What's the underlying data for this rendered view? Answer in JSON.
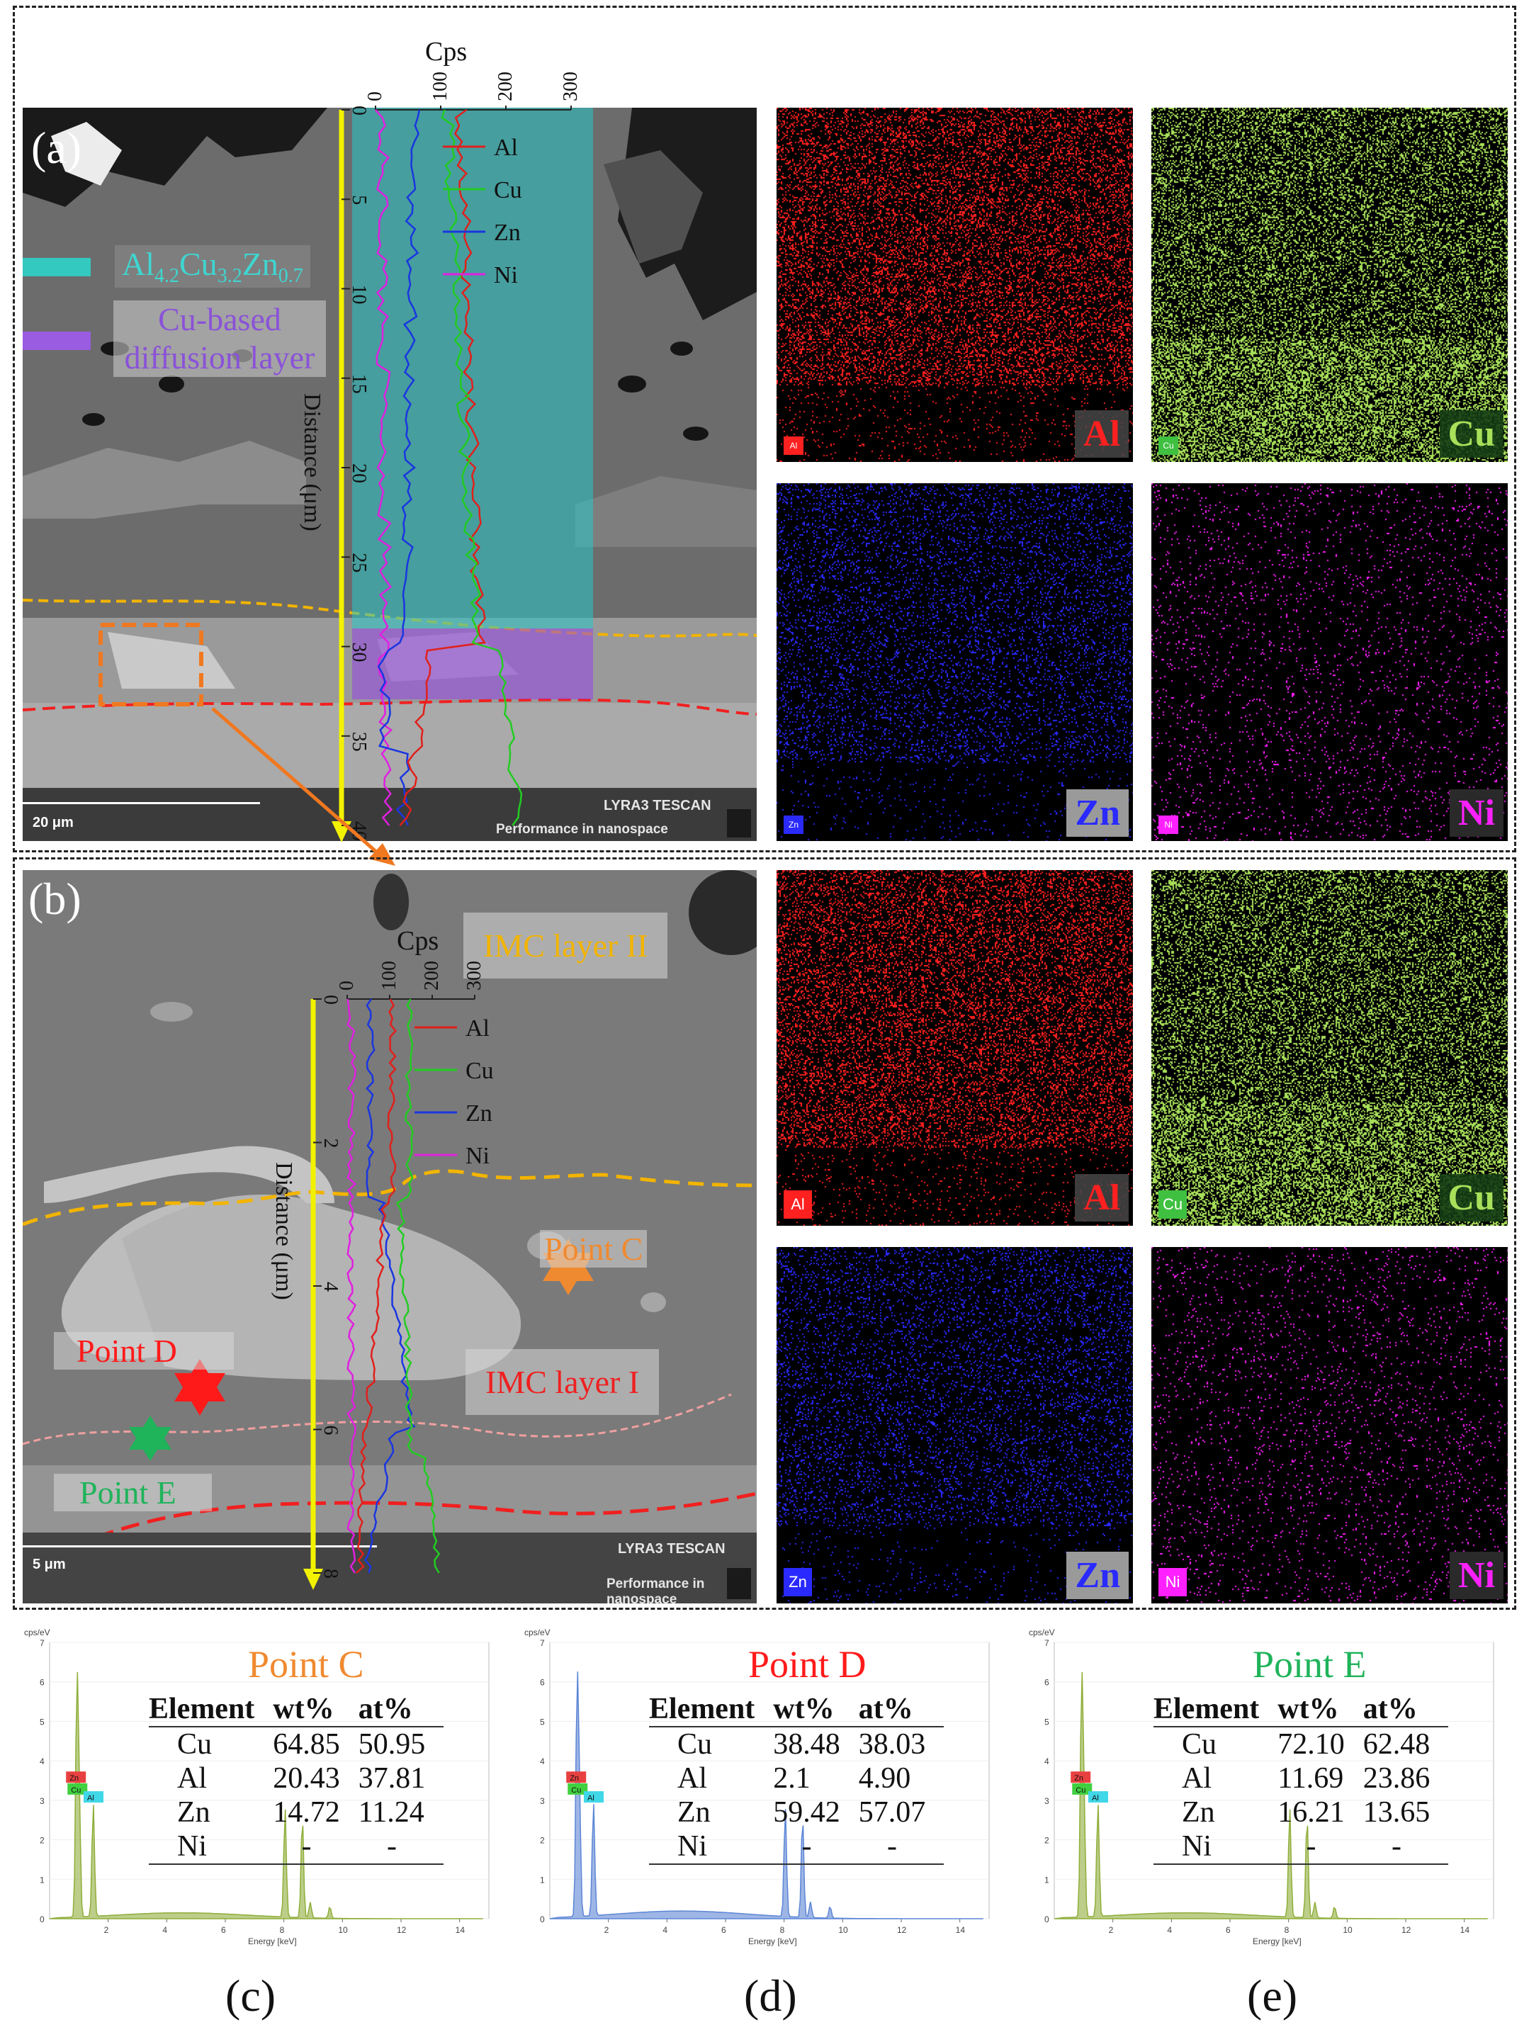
{
  "panel_a": {
    "letter": "(a)",
    "axis_top_label": "Cps",
    "axis_top_ticks": [
      "0",
      "100",
      "200",
      "300"
    ],
    "axis_side_label": "Distance (μm)",
    "axis_side_ticks": [
      "0",
      "5",
      "10",
      "15",
      "20",
      "25",
      "30",
      "35",
      "40"
    ],
    "legend": [
      "Al",
      "Cu",
      "Zn",
      "Ni"
    ],
    "annotation_phase": "Al4.2Cu3.2Zn0.7",
    "annotation_phase_parts": {
      "a": "Al",
      "s1": "4.2",
      "b": "Cu",
      "s2": "3.2",
      "c": "Zn",
      "s3": "0.7"
    },
    "annotation_diffusion": [
      "Cu-based",
      "diffusion layer"
    ],
    "scale_bar": "20 μm",
    "brand": "LYRA3 TESCAN",
    "tagline": "Performance in nanospace"
  },
  "panel_b": {
    "letter": "(b)",
    "axis_top_label": "Cps",
    "axis_top_ticks": [
      "0",
      "100",
      "200",
      "300"
    ],
    "axis_side_label": "Distance (μm)",
    "axis_side_ticks": [
      "0",
      "2",
      "4",
      "6",
      "8"
    ],
    "legend": [
      "Al",
      "Cu",
      "Zn",
      "Ni"
    ],
    "labels": {
      "imc2": "IMC layer  II",
      "imc1": "IMC layer I",
      "point_c": "Point C",
      "point_d": "Point D",
      "point_e": "Point E"
    },
    "scale_bar": "5 μm",
    "brand": "LYRA3 TESCAN",
    "tagline": "Performance in nanospace"
  },
  "maps_a": [
    {
      "element": "Al",
      "mini": "Al",
      "color": "#ff2020"
    },
    {
      "element": "Cu",
      "mini": "Cu",
      "color": "#a8e05a"
    },
    {
      "element": "Zn",
      "mini": "Zn",
      "color": "#2a2aff"
    },
    {
      "element": "Ni",
      "mini": "Ni",
      "color": "#ff20ff"
    }
  ],
  "maps_b": [
    {
      "element": "Al",
      "mini": "Al",
      "color": "#ff2020"
    },
    {
      "element": "Cu",
      "mini": "Cu",
      "color": "#a8e05a"
    },
    {
      "element": "Zn",
      "mini": "Zn",
      "color": "#2a2aff"
    },
    {
      "element": "Ni",
      "mini": "Ni",
      "color": "#ff20ff"
    }
  ],
  "spectra": [
    {
      "letter": "(c)",
      "title": "Point C",
      "title_color": "#f08a30",
      "y_unit": "cps/eV",
      "x_label": "Energy [keV]",
      "headers": [
        "Element",
        "wt%",
        "at%"
      ],
      "rows": [
        [
          "Cu",
          "64.85",
          "50.95"
        ],
        [
          "Al",
          "20.43",
          "37.81"
        ],
        [
          "Zn",
          "14.72",
          "11.24"
        ],
        [
          "Ni",
          "-",
          "-"
        ]
      ],
      "peak_tags": [
        "Zn",
        "Cu",
        "Al"
      ],
      "fill": "#8fae3a"
    },
    {
      "letter": "(d)",
      "title": "Point D",
      "title_color": "#ff1a1a",
      "y_unit": "cps/eV",
      "x_label": "Energy [keV]",
      "headers": [
        "Element",
        "wt%",
        "at%"
      ],
      "rows": [
        [
          "Cu",
          "38.48",
          "38.03"
        ],
        [
          "Al",
          "2.1",
          "4.90"
        ],
        [
          "Zn",
          "59.42",
          "57.07"
        ],
        [
          "Ni",
          "-",
          "-"
        ]
      ],
      "peak_tags": [
        "Zn",
        "Cu",
        "Al"
      ],
      "fill": "#5d86d6"
    },
    {
      "letter": "(e)",
      "title": "Point E",
      "title_color": "#1fb35a",
      "y_unit": "cps/eV",
      "x_label": "Energy [keV]",
      "headers": [
        "Element",
        "wt%",
        "at%"
      ],
      "rows": [
        [
          "Cu",
          "72.10",
          "62.48"
        ],
        [
          "Al",
          "11.69",
          "23.86"
        ],
        [
          "Zn",
          "16.21",
          "13.65"
        ],
        [
          "Ni",
          "-",
          "-"
        ]
      ],
      "peak_tags": [
        "Zn",
        "Cu",
        "Al"
      ],
      "fill": "#8fae3a"
    }
  ],
  "spectrum_axis": {
    "x_ticks": [
      "2",
      "4",
      "6",
      "8",
      "10",
      "12",
      "14"
    ],
    "y_ticks": [
      "0",
      "1",
      "2",
      "3",
      "4",
      "5",
      "6",
      "7"
    ]
  },
  "colors": {
    "Al": "#e0201c",
    "Cu": "#22cc22",
    "Zn": "#1a36e0",
    "Ni": "#e020e0",
    "yellow_axis": "#f2f200",
    "layer_ii": "#f2b400",
    "layer_i_line": "#f02020"
  }
}
